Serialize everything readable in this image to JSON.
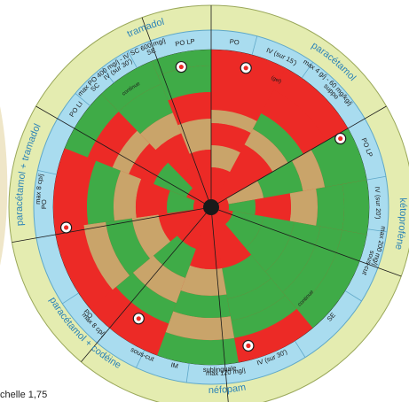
{
  "colors": {
    "outer_ring": "#e4ecb0",
    "outer_ring_stroke": "#9aa85a",
    "route_ring": "#a9dcef",
    "route_ring_stroke": "#5fa8c8",
    "red": "#ec2a26",
    "green": "#3fab47",
    "tan": "#c9a46a",
    "label": "#2b83b8",
    "dark": "#1a1a1a",
    "bg_wash": "#f6f1dc"
  },
  "wheel": {
    "sectors": [
      {
        "name": "paracetamol",
        "drug": "paracétamol",
        "dose": "max 4 g/j  -  60 mg/kg/j",
        "routes": [
          "PO",
          "IV (sur 15')",
          "suppo"
        ],
        "route_header": "PO",
        "note": "(gel)"
      },
      {
        "name": "ketoprofene",
        "drug": "kétoprofène",
        "dose": "max 200 mg/j",
        "routes": [
          "PO LP",
          "IV (sur 20')",
          "sous-cut",
          "SE"
        ],
        "note": "continue"
      },
      {
        "name": "nefopam",
        "drug": "néfopam",
        "dose": "max 120 mg/j",
        "routes": [
          "IV (sur 30')",
          "sublinguale",
          "IM",
          "sous-cut"
        ]
      },
      {
        "name": "paracetamol-codeine",
        "drug": "paracétamol + codéine",
        "dose": "max 8 cp/j",
        "routes": [
          "PO"
        ]
      },
      {
        "name": "paracetamol-tramadol",
        "drug": "paracétamol + tramadol",
        "dose": "max 8 cp/j",
        "routes": [
          "PO"
        ]
      },
      {
        "name": "tramadol",
        "drug": "tramadol",
        "dose": "max PO 400 mg/j  -  IV  SC 600 mg/j",
        "routes": [
          "PO LI",
          "SC",
          "IV (sur 30')",
          "SE",
          "PO LP"
        ],
        "note": "continue"
      }
    ]
  },
  "footer": {
    "text": "chelle 1,75"
  }
}
